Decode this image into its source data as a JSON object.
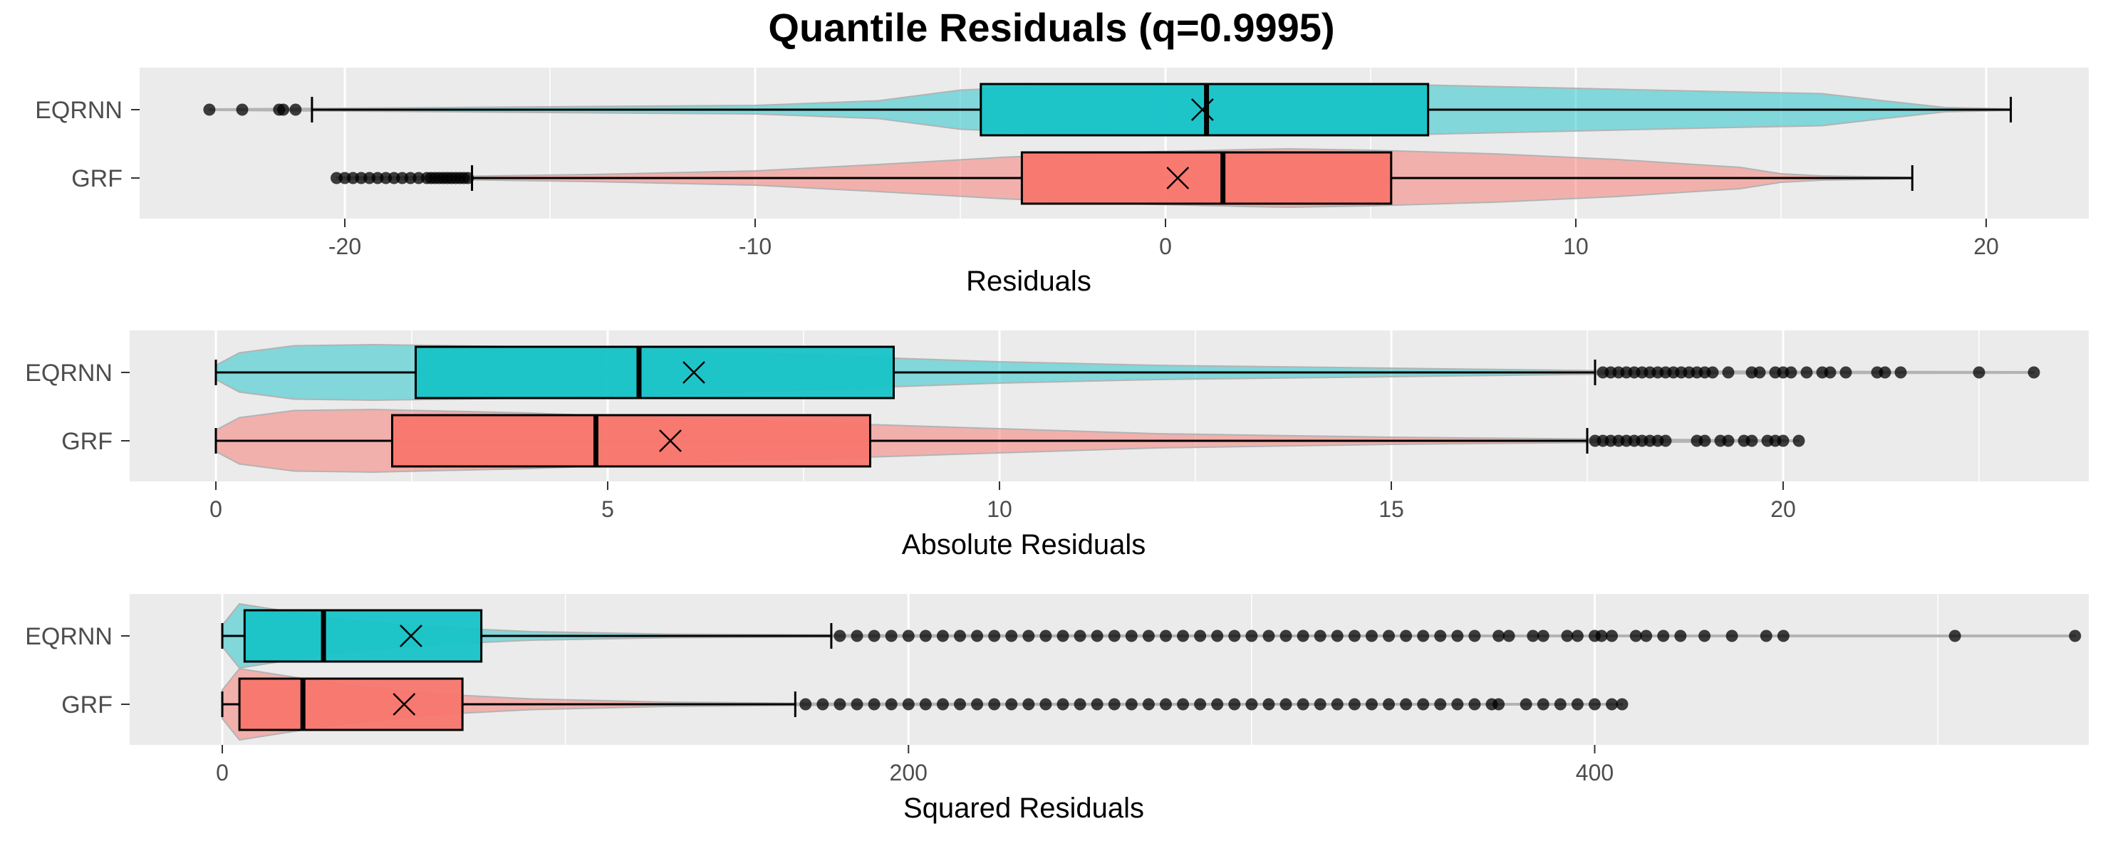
{
  "title": "Quantile Residuals (q=0.9995)",
  "colors": {
    "EQRNN": "#17C4C8",
    "GRF": "#F8766D",
    "panel": "#EBEBEB",
    "grid": "#FFFFFF"
  },
  "chart_data": [
    {
      "type": "box-violin",
      "xlabel": "Residuals",
      "xlim": [
        -25,
        22.5
      ],
      "ticks": [
        -20,
        -10,
        0,
        10,
        20
      ],
      "tick_labels": [
        "-20",
        "-10",
        "0",
        "10",
        "20"
      ],
      "series": [
        {
          "name": "EQRNN",
          "whisker_low": -20.8,
          "q1": -4.5,
          "median": 1.0,
          "q3": 6.4,
          "whisker_high": 20.6,
          "mean": 0.9,
          "outliers": [
            -23.3,
            -22.5,
            -21.6,
            -21.5,
            -21.2
          ],
          "density": [
            [
              -23.3,
              0.02
            ],
            [
              -20,
              0.04
            ],
            [
              -15,
              0.08
            ],
            [
              -10,
              0.12
            ],
            [
              -7,
              0.25
            ],
            [
              -5,
              0.55
            ],
            [
              -2,
              0.7
            ],
            [
              0,
              0.72
            ],
            [
              3,
              0.72
            ],
            [
              6,
              0.7
            ],
            [
              10,
              0.6
            ],
            [
              13,
              0.52
            ],
            [
              16,
              0.45
            ],
            [
              17.5,
              0.25
            ],
            [
              19,
              0.06
            ],
            [
              20.6,
              0.02
            ]
          ]
        },
        {
          "name": "GRF",
          "whisker_low": -16.9,
          "q1": -3.5,
          "median": 1.4,
          "q3": 5.5,
          "whisker_high": 18.2,
          "mean": 0.3,
          "outliers": [
            -20.2,
            -20.0,
            -19.8,
            -19.6,
            -19.4,
            -19.2,
            -19.0,
            -18.8,
            -18.6,
            -18.4,
            -18.2,
            -18.0,
            -17.9,
            -17.8,
            -17.7,
            -17.6,
            -17.5,
            -17.4,
            -17.3,
            -17.2,
            -17.1,
            -17.0
          ],
          "density": [
            [
              -20.2,
              0.03
            ],
            [
              -17,
              0.05
            ],
            [
              -14,
              0.1
            ],
            [
              -10,
              0.2
            ],
            [
              -7,
              0.38
            ],
            [
              -4,
              0.58
            ],
            [
              -1,
              0.72
            ],
            [
              2,
              0.8
            ],
            [
              3,
              0.82
            ],
            [
              5,
              0.78
            ],
            [
              8,
              0.68
            ],
            [
              11,
              0.52
            ],
            [
              14,
              0.3
            ],
            [
              15,
              0.12
            ],
            [
              16,
              0.06
            ],
            [
              18.2,
              0.02
            ]
          ]
        }
      ]
    },
    {
      "type": "box-violin",
      "xlabel": "Absolute Residuals",
      "xlim": [
        -1.1,
        23.9
      ],
      "ticks": [
        0,
        5,
        10,
        15,
        20
      ],
      "tick_labels": [
        "0",
        "5",
        "10",
        "15",
        "20"
      ],
      "series": [
        {
          "name": "EQRNN",
          "whisker_low": 0,
          "q1": 2.55,
          "median": 5.4,
          "q3": 8.65,
          "whisker_high": 17.6,
          "mean": 6.1,
          "outliers": [
            17.7,
            17.8,
            17.9,
            18.0,
            18.1,
            18.2,
            18.3,
            18.4,
            18.5,
            18.6,
            18.7,
            18.8,
            18.9,
            19.0,
            19.1,
            19.3,
            19.6,
            19.7,
            19.9,
            20.0,
            20.1,
            20.3,
            20.5,
            20.6,
            20.8,
            21.2,
            21.3,
            21.5,
            22.5,
            23.2
          ],
          "density": [
            [
              0,
              0.2
            ],
            [
              0.3,
              0.55
            ],
            [
              1,
              0.75
            ],
            [
              2,
              0.78
            ],
            [
              4,
              0.72
            ],
            [
              6,
              0.6
            ],
            [
              8,
              0.45
            ],
            [
              10,
              0.3
            ],
            [
              12,
              0.2
            ],
            [
              15,
              0.12
            ],
            [
              17.6,
              0.05
            ],
            [
              20,
              0.03
            ],
            [
              23.2,
              0.02
            ]
          ]
        },
        {
          "name": "GRF",
          "whisker_low": 0,
          "q1": 2.25,
          "median": 4.85,
          "q3": 8.35,
          "whisker_high": 17.5,
          "mean": 5.8,
          "outliers": [
            17.6,
            17.7,
            17.8,
            17.9,
            18.0,
            18.1,
            18.2,
            18.3,
            18.4,
            18.5,
            18.9,
            19.0,
            19.2,
            19.3,
            19.5,
            19.6,
            19.8,
            19.9,
            20.0,
            20.2
          ],
          "density": [
            [
              0,
              0.3
            ],
            [
              0.3,
              0.65
            ],
            [
              1,
              0.85
            ],
            [
              2,
              0.88
            ],
            [
              4,
              0.78
            ],
            [
              6,
              0.62
            ],
            [
              8,
              0.48
            ],
            [
              10,
              0.34
            ],
            [
              12,
              0.2
            ],
            [
              15,
              0.1
            ],
            [
              17.5,
              0.05
            ],
            [
              20.2,
              0.02
            ]
          ]
        }
      ]
    },
    {
      "type": "box-violin",
      "xlabel": "Squared Residuals",
      "xlim": [
        -27,
        544
      ],
      "ticks": [
        0,
        200,
        400
      ],
      "tick_labels": [
        "0",
        "200",
        "400"
      ],
      "series": [
        {
          "name": "EQRNN",
          "whisker_low": 0,
          "q1": 6.5,
          "median": 29.5,
          "q3": 75.5,
          "whisker_high": 177.5,
          "mean": 55,
          "outliers": [
            180,
            185,
            190,
            195,
            200,
            205,
            210,
            215,
            220,
            225,
            230,
            235,
            240,
            245,
            250,
            255,
            260,
            265,
            270,
            275,
            280,
            285,
            290,
            295,
            300,
            305,
            310,
            315,
            320,
            325,
            330,
            335,
            340,
            345,
            350,
            355,
            360,
            365,
            372,
            375,
            382,
            385,
            392,
            395,
            400,
            402,
            405,
            412,
            415,
            420,
            425,
            432,
            440,
            450,
            455,
            505,
            540
          ],
          "density": [
            [
              0,
              0.3
            ],
            [
              5,
              0.9
            ],
            [
              15,
              0.75
            ],
            [
              35,
              0.45
            ],
            [
              60,
              0.25
            ],
            [
              90,
              0.12
            ],
            [
              130,
              0.05
            ],
            [
              178,
              0.03
            ],
            [
              300,
              0.02
            ],
            [
              540,
              0.02
            ]
          ]
        },
        {
          "name": "GRF",
          "whisker_low": 0,
          "q1": 5,
          "median": 23.5,
          "q3": 70,
          "whisker_high": 167,
          "mean": 53,
          "outliers": [
            170,
            175,
            180,
            185,
            190,
            195,
            200,
            205,
            210,
            215,
            220,
            225,
            230,
            235,
            240,
            245,
            250,
            255,
            260,
            265,
            270,
            275,
            280,
            285,
            290,
            295,
            300,
            305,
            310,
            315,
            320,
            325,
            330,
            335,
            340,
            345,
            350,
            355,
            360,
            365,
            370,
            372,
            380,
            385,
            390,
            395,
            400,
            405,
            408
          ],
          "density": [
            [
              0,
              0.4
            ],
            [
              5,
              1.0
            ],
            [
              15,
              0.85
            ],
            [
              35,
              0.55
            ],
            [
              60,
              0.3
            ],
            [
              90,
              0.15
            ],
            [
              130,
              0.06
            ],
            [
              167,
              0.03
            ],
            [
              300,
              0.02
            ],
            [
              408,
              0.02
            ]
          ]
        }
      ]
    }
  ]
}
